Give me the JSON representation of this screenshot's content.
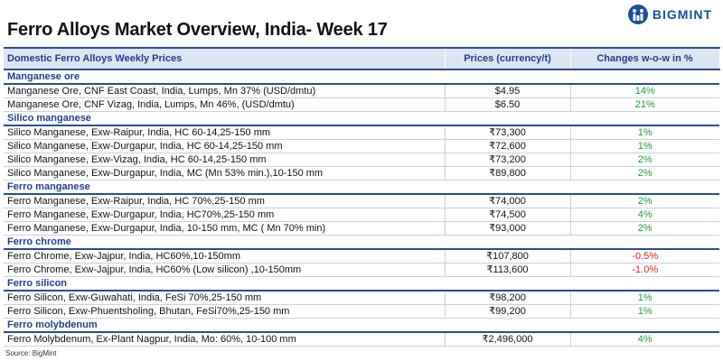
{
  "title": "Ferro Alloys Market Overview, India- Week 17",
  "brand": "BIGMINT",
  "colors": {
    "header_blue": "#1f3f8c",
    "up": "#1e9d3a",
    "down": "#d9261c"
  },
  "table": {
    "headers": [
      "Domestic Ferro Alloys Weekly Prices",
      "Prices (currency/t)",
      "Changes w-o-w in %"
    ],
    "sections": [
      {
        "name": "Manganese ore",
        "rows": [
          {
            "name": "Manganese Ore, CNF East Coast, India, Lumps, Mn 37% (USD/dmtu)",
            "price": "$4.95",
            "change": "14%",
            "trend": "up"
          },
          {
            "name": "Manganese Ore, CNF Vizag, India, Lumps, Mn 46%, (USD/dmtu)",
            "price": "$6.50",
            "change": "21%",
            "trend": "up"
          }
        ]
      },
      {
        "name": "Silico manganese",
        "rows": [
          {
            "name": "Silico Manganese, Exw-Raipur, India, HC 60-14,25-150 mm",
            "price": "₹73,300",
            "change": "1%",
            "trend": "up"
          },
          {
            "name": "Silico Manganese, Exw-Durgapur, India, HC 60-14,25-150 mm",
            "price": "₹72,600",
            "change": "1%",
            "trend": "up"
          },
          {
            "name": "Silico Manganese, Exw-Vizag, India, HC 60-14,25-150 mm",
            "price": "₹73,200",
            "change": "2%",
            "trend": "up"
          },
          {
            "name": "Silico Manganese, Exw-Durgapur, India, MC (Mn 53% min.),10-150 mm",
            "price": "₹89,800",
            "change": "2%",
            "trend": "up"
          }
        ]
      },
      {
        "name": "Ferro manganese",
        "rows": [
          {
            "name": "Ferro Manganese, Exw-Raipur, India, HC 70%,25-150 mm",
            "price": "₹74,000",
            "change": "2%",
            "trend": "up"
          },
          {
            "name": "Ferro Manganese, Exw-Durgapur, India, HC70%,25-150 mm",
            "price": "₹74,500",
            "change": "4%",
            "trend": "up"
          },
          {
            "name": "Ferro Manganese, Exw-Durgapur, India, 10-150 mm, MC ( Mn 70% min)",
            "price": "₹93,000",
            "change": "2%",
            "trend": "up"
          }
        ]
      },
      {
        "name": "Ferro chrome",
        "rows": [
          {
            "name": "Ferro Chrome, Exw-Jajpur, India, HC60%,10-150mm",
            "price": "₹107,800",
            "change": "-0.5%",
            "trend": "down"
          },
          {
            "name": "Ferro Chrome, Exw-Jajpur, India, HC60% (Low silicon) ,10-150mm",
            "price": "₹113,600",
            "change": "-1.0%",
            "trend": "down"
          }
        ]
      },
      {
        "name": "Ferro silicon",
        "rows": [
          {
            "name": "Ferro Silicon, Exw-Guwahati, India, FeSi 70%,25-150 mm",
            "price": "₹98,200",
            "change": "1%",
            "trend": "up"
          },
          {
            "name": "Ferro Silicon, Exw-Phuentsholing, Bhutan, FeSi70%,25-150 mm",
            "price": "₹99,200",
            "change": "1%",
            "trend": "up"
          }
        ]
      },
      {
        "name": "Ferro molybdenum",
        "rows": [
          {
            "name": "Ferro Molybdenum, Ex-Plant Nagpur, India, Mo: 60%, 10-100 mm",
            "price": "₹2,496,000",
            "change": "4%",
            "trend": "up"
          }
        ]
      }
    ]
  },
  "source": "Source: BigMint"
}
